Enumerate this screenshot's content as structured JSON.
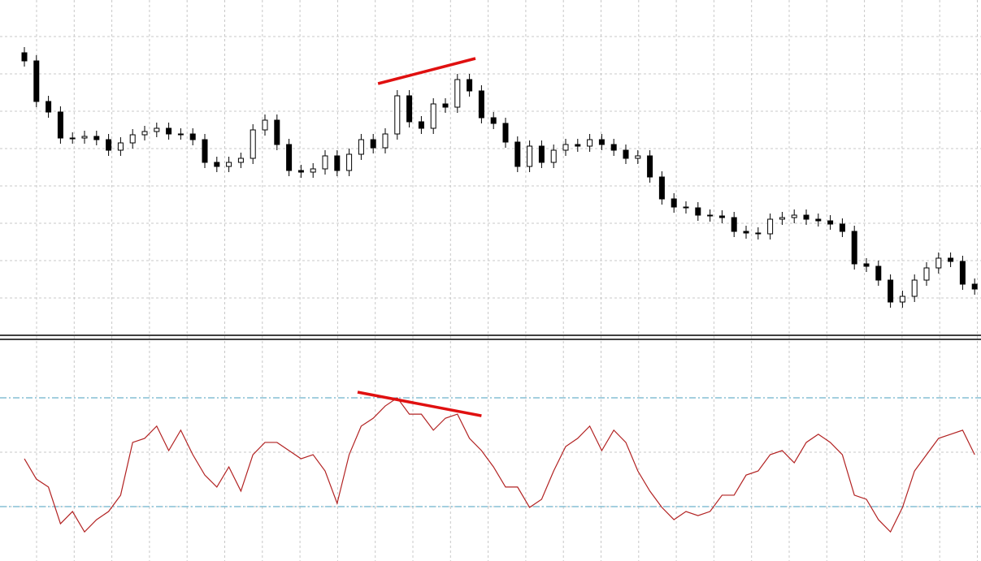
{
  "chart_data": [
    {
      "type": "candlestick",
      "ylim": [
        0,
        410
      ],
      "up_color": "#ffffff",
      "down_color": "#000000",
      "open": [
        345,
        335,
        285,
        272,
        240,
        240,
        242,
        238,
        225,
        234,
        244,
        248,
        252,
        245,
        245,
        238,
        210,
        205,
        210,
        215,
        250,
        262,
        232,
        200,
        198,
        202,
        218,
        200,
        220,
        238,
        228,
        245,
        292,
        260,
        252,
        282,
        278,
        312,
        298,
        265,
        258,
        235,
        205,
        230,
        210,
        225,
        232,
        230,
        238,
        232,
        225,
        215,
        218,
        192,
        165,
        155,
        154,
        145,
        144,
        142,
        125,
        123,
        122,
        140,
        142,
        145,
        140,
        138,
        134,
        125,
        85,
        82,
        65,
        38,
        45,
        65,
        80,
        92,
        88,
        60
      ],
      "high": [
        352,
        342,
        292,
        279,
        247,
        249,
        249,
        245,
        241,
        251,
        255,
        259,
        259,
        252,
        252,
        245,
        217,
        217,
        222,
        257,
        269,
        269,
        239,
        207,
        209,
        225,
        225,
        227,
        245,
        245,
        252,
        299,
        299,
        267,
        289,
        289,
        319,
        319,
        305,
        272,
        265,
        242,
        237,
        237,
        232,
        239,
        239,
        245,
        245,
        239,
        232,
        225,
        225,
        199,
        172,
        162,
        161,
        152,
        151,
        149,
        132,
        130,
        147,
        149,
        152,
        152,
        147,
        145,
        141,
        132,
        92,
        89,
        72,
        52,
        72,
        87,
        99,
        99,
        95,
        67
      ],
      "low": [
        328,
        278,
        265,
        233,
        233,
        233,
        231,
        218,
        218,
        227,
        237,
        241,
        238,
        238,
        231,
        203,
        198,
        198,
        203,
        208,
        243,
        225,
        193,
        191,
        191,
        195,
        193,
        193,
        213,
        221,
        221,
        238,
        253,
        245,
        245,
        271,
        271,
        291,
        258,
        251,
        228,
        198,
        198,
        203,
        203,
        218,
        223,
        223,
        225,
        218,
        208,
        208,
        185,
        158,
        148,
        147,
        138,
        137,
        135,
        118,
        116,
        115,
        115,
        133,
        135,
        133,
        131,
        127,
        118,
        78,
        75,
        58,
        31,
        31,
        38,
        58,
        73,
        81,
        53,
        47
      ],
      "close": [
        335,
        285,
        272,
        240,
        240,
        242,
        238,
        225,
        234,
        244,
        248,
        252,
        245,
        245,
        238,
        210,
        205,
        210,
        215,
        250,
        262,
        232,
        200,
        198,
        202,
        218,
        200,
        220,
        238,
        228,
        245,
        292,
        260,
        252,
        282,
        278,
        312,
        298,
        265,
        258,
        235,
        205,
        230,
        210,
        225,
        232,
        230,
        238,
        232,
        225,
        215,
        218,
        192,
        165,
        155,
        154,
        145,
        144,
        142,
        125,
        123,
        122,
        140,
        142,
        145,
        140,
        138,
        134,
        125,
        85,
        82,
        65,
        38,
        45,
        65,
        80,
        92,
        88,
        60,
        54
      ],
      "trendline": {
        "x": [
          29.4,
          37.5
        ],
        "values": [
          307,
          338
        ],
        "color": "#e01010"
      }
    },
    {
      "type": "line",
      "ylim": [
        10,
        90.9
      ],
      "color": "#b22222",
      "levels": [
        70,
        30
      ],
      "level_color": "#4a9fbf",
      "values": [
        47.6,
        40.1,
        37.2,
        23.7,
        28.2,
        20.7,
        25.2,
        28.2,
        34.2,
        53.6,
        55.1,
        59.6,
        50.6,
        58.1,
        49.1,
        41.6,
        37.2,
        44.6,
        35.7,
        49.1,
        53.6,
        53.6,
        50.6,
        47.6,
        49.1,
        43.1,
        31.2,
        49.1,
        59.6,
        62.5,
        67.0,
        70.0,
        64.0,
        64.0,
        58.1,
        62.5,
        64.0,
        55.1,
        50.6,
        44.6,
        37.2,
        37.2,
        29.7,
        32.7,
        43.1,
        52.1,
        55.1,
        59.6,
        50.6,
        58.1,
        53.6,
        43.1,
        35.7,
        29.7,
        25.2,
        28.2,
        26.7,
        28.2,
        34.2,
        34.2,
        41.6,
        43.1,
        49.1,
        50.6,
        46.1,
        53.6,
        56.6,
        53.6,
        49.1,
        34.2,
        32.7,
        25.2,
        20.7,
        29.7,
        43.1,
        49.1,
        55.1,
        56.6,
        58.1,
        49.1
      ],
      "trendline": {
        "x": [
          27.7,
          38.0
        ],
        "values": [
          72.1,
          63.4
        ],
        "color": "#e01010"
      }
    }
  ]
}
